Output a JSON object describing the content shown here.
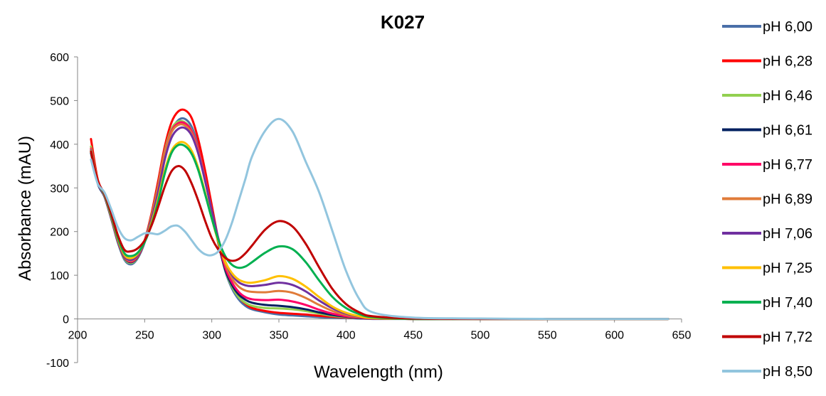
{
  "chart_data": {
    "type": "line",
    "title": "K027",
    "xlabel": "Wavelength (nm)",
    "ylabel": "Absorbance (mAU)",
    "xlim": [
      200,
      650
    ],
    "ylim": [
      -100,
      600
    ],
    "xticks": [
      200,
      250,
      300,
      350,
      400,
      450,
      500,
      550,
      600,
      650
    ],
    "yticks": [
      -100,
      0,
      100,
      200,
      300,
      400,
      500,
      600
    ],
    "xtick_labels": [
      "200",
      "250",
      "300",
      "350",
      "400",
      "450",
      "500",
      "550",
      "600",
      "650"
    ],
    "ytick_labels": [
      "-100",
      "0",
      "100",
      "200",
      "300",
      "400",
      "500",
      "600"
    ],
    "grid": false,
    "legend_position": "right",
    "series": [
      {
        "name": "pH 6,00",
        "color": "#4a6fa8",
        "x": [
          210,
          215,
          220,
          225,
          230,
          235,
          240,
          245,
          250,
          255,
          260,
          265,
          270,
          275,
          280,
          285,
          290,
          295,
          300,
          305,
          310,
          315,
          320,
          325,
          330,
          340,
          350,
          360,
          370,
          380,
          390,
          400,
          410,
          420,
          450,
          500,
          550,
          600,
          640
        ],
        "y": [
          385,
          310,
          280,
          230,
          175,
          135,
          125,
          140,
          175,
          230,
          300,
          380,
          430,
          455,
          458,
          440,
          395,
          330,
          250,
          175,
          110,
          70,
          45,
          30,
          22,
          15,
          10,
          8,
          6,
          4,
          3,
          2,
          1,
          0,
          0,
          0,
          0,
          0,
          0
        ]
      },
      {
        "name": "pH 6,28",
        "color": "#ff0000",
        "x": [
          210,
          215,
          220,
          225,
          230,
          235,
          240,
          245,
          250,
          255,
          260,
          265,
          270,
          275,
          280,
          285,
          290,
          295,
          300,
          305,
          310,
          315,
          320,
          325,
          330,
          340,
          350,
          360,
          370,
          380,
          390,
          400,
          410,
          420,
          450,
          500,
          550,
          600,
          640
        ],
        "y": [
          412,
          320,
          285,
          235,
          180,
          140,
          130,
          145,
          180,
          240,
          315,
          395,
          450,
          475,
          478,
          460,
          410,
          340,
          260,
          180,
          115,
          75,
          50,
          35,
          25,
          18,
          14,
          12,
          10,
          7,
          5,
          3,
          2,
          1,
          0,
          0,
          0,
          0,
          0
        ]
      },
      {
        "name": "pH 6,46",
        "color": "#92d050",
        "x": [
          210,
          215,
          220,
          225,
          230,
          235,
          240,
          245,
          250,
          255,
          260,
          265,
          270,
          275,
          280,
          285,
          290,
          295,
          300,
          305,
          310,
          315,
          320,
          325,
          330,
          340,
          350,
          360,
          370,
          380,
          390,
          400,
          410,
          420,
          450,
          500,
          550,
          600,
          640
        ],
        "y": [
          395,
          315,
          282,
          233,
          178,
          138,
          128,
          142,
          178,
          235,
          305,
          385,
          435,
          452,
          450,
          432,
          388,
          322,
          245,
          172,
          112,
          74,
          50,
          37,
          30,
          25,
          24,
          22,
          18,
          12,
          7,
          4,
          2,
          1,
          0,
          0,
          0,
          0,
          0
        ]
      },
      {
        "name": "pH 6,61",
        "color": "#002060",
        "x": [
          210,
          215,
          220,
          225,
          230,
          235,
          240,
          245,
          250,
          255,
          260,
          265,
          270,
          275,
          280,
          285,
          290,
          295,
          300,
          305,
          310,
          315,
          320,
          325,
          330,
          340,
          350,
          360,
          370,
          380,
          390,
          400,
          410,
          420,
          450,
          500,
          550,
          600,
          640
        ],
        "y": [
          380,
          312,
          281,
          232,
          178,
          140,
          130,
          143,
          178,
          232,
          300,
          378,
          428,
          446,
          446,
          428,
          385,
          320,
          245,
          172,
          113,
          78,
          56,
          44,
          37,
          32,
          30,
          27,
          22,
          15,
          9,
          5,
          2,
          1,
          0,
          0,
          0,
          0,
          0
        ]
      },
      {
        "name": "pH 6,77",
        "color": "#ff0066",
        "x": [
          210,
          215,
          220,
          225,
          230,
          235,
          240,
          245,
          250,
          255,
          260,
          265,
          270,
          275,
          280,
          285,
          290,
          295,
          300,
          305,
          310,
          315,
          320,
          325,
          330,
          340,
          350,
          360,
          370,
          380,
          390,
          400,
          410,
          420,
          450,
          500,
          550,
          600,
          640
        ],
        "y": [
          390,
          314,
          282,
          233,
          179,
          141,
          131,
          144,
          178,
          233,
          302,
          380,
          430,
          448,
          448,
          430,
          387,
          322,
          248,
          176,
          118,
          84,
          62,
          50,
          45,
          43,
          44,
          40,
          32,
          21,
          12,
          6,
          3,
          1,
          0,
          0,
          0,
          0,
          0
        ]
      },
      {
        "name": "pH 6,89",
        "color": "#e07b39",
        "x": [
          210,
          215,
          220,
          225,
          230,
          235,
          240,
          245,
          250,
          255,
          260,
          265,
          270,
          275,
          280,
          285,
          290,
          295,
          300,
          305,
          310,
          315,
          320,
          325,
          330,
          340,
          350,
          360,
          370,
          380,
          390,
          400,
          410,
          420,
          450,
          500,
          550,
          600,
          640
        ],
        "y": [
          388,
          314,
          283,
          234,
          180,
          142,
          133,
          146,
          179,
          233,
          300,
          378,
          427,
          444,
          443,
          425,
          382,
          318,
          248,
          180,
          126,
          93,
          74,
          65,
          62,
          61,
          64,
          60,
          48,
          32,
          18,
          9,
          4,
          2,
          0,
          0,
          0,
          0,
          0
        ]
      },
      {
        "name": "pH 7,06",
        "color": "#7030a0",
        "x": [
          210,
          215,
          220,
          225,
          230,
          235,
          240,
          245,
          250,
          255,
          260,
          265,
          270,
          275,
          280,
          285,
          290,
          295,
          300,
          305,
          310,
          315,
          320,
          325,
          330,
          340,
          350,
          360,
          370,
          380,
          390,
          400,
          410,
          420,
          450,
          500,
          550,
          600,
          640
        ],
        "y": [
          386,
          314,
          283,
          235,
          181,
          143,
          135,
          147,
          178,
          228,
          290,
          365,
          415,
          435,
          437,
          420,
          378,
          316,
          248,
          183,
          132,
          101,
          84,
          77,
          75,
          78,
          83,
          78,
          63,
          42,
          24,
          12,
          5,
          2,
          0,
          0,
          0,
          0,
          0
        ]
      },
      {
        "name": "pH 7,25",
        "color": "#ffc000",
        "x": [
          210,
          215,
          220,
          225,
          230,
          235,
          240,
          245,
          250,
          255,
          260,
          265,
          270,
          275,
          280,
          285,
          290,
          295,
          300,
          305,
          310,
          315,
          320,
          325,
          330,
          340,
          350,
          360,
          370,
          380,
          390,
          400,
          410,
          420,
          450,
          500,
          550,
          600,
          640
        ],
        "y": [
          384,
          315,
          284,
          236,
          183,
          146,
          139,
          150,
          177,
          220,
          275,
          340,
          385,
          403,
          403,
          385,
          345,
          290,
          230,
          175,
          131,
          105,
          90,
          84,
          83,
          89,
          98,
          92,
          74,
          50,
          28,
          14,
          6,
          2,
          0,
          0,
          0,
          0,
          0
        ]
      },
      {
        "name": "pH 7,40",
        "color": "#00b050",
        "x": [
          210,
          215,
          220,
          225,
          230,
          235,
          240,
          245,
          250,
          255,
          260,
          265,
          270,
          275,
          280,
          285,
          290,
          295,
          300,
          305,
          310,
          315,
          320,
          325,
          330,
          340,
          350,
          360,
          370,
          380,
          390,
          400,
          410,
          420,
          450,
          500,
          550,
          600,
          640
        ],
        "y": [
          383,
          315,
          285,
          238,
          186,
          150,
          144,
          152,
          176,
          215,
          268,
          333,
          380,
          398,
          396,
          378,
          340,
          286,
          230,
          180,
          144,
          124,
          117,
          120,
          130,
          152,
          166,
          160,
          130,
          88,
          50,
          25,
          11,
          4,
          0,
          0,
          0,
          0,
          0
        ]
      },
      {
        "name": "pH 7,72",
        "color": "#c00000",
        "x": [
          210,
          215,
          220,
          225,
          230,
          235,
          240,
          245,
          250,
          255,
          260,
          265,
          270,
          275,
          280,
          285,
          290,
          295,
          300,
          305,
          310,
          315,
          320,
          325,
          330,
          340,
          350,
          360,
          370,
          380,
          390,
          400,
          410,
          420,
          450,
          500,
          550,
          600,
          640
        ],
        "y": [
          383,
          316,
          287,
          242,
          192,
          158,
          155,
          162,
          180,
          213,
          256,
          303,
          338,
          350,
          340,
          310,
          270,
          225,
          185,
          158,
          140,
          133,
          137,
          150,
          168,
          205,
          224,
          212,
          172,
          118,
          68,
          34,
          15,
          6,
          1,
          0,
          0,
          0,
          0
        ]
      },
      {
        "name": "pH 8,50",
        "color": "#92c5de",
        "x": [
          210,
          215,
          220,
          225,
          230,
          235,
          240,
          245,
          250,
          255,
          260,
          265,
          270,
          275,
          280,
          285,
          290,
          295,
          300,
          305,
          310,
          315,
          320,
          325,
          330,
          340,
          350,
          360,
          370,
          380,
          390,
          400,
          410,
          420,
          450,
          500,
          550,
          600,
          640
        ],
        "y": [
          365,
          310,
          290,
          252,
          210,
          185,
          180,
          188,
          196,
          196,
          194,
          202,
          212,
          213,
          200,
          180,
          160,
          148,
          146,
          155,
          180,
          220,
          270,
          320,
          372,
          432,
          458,
          430,
          360,
          290,
          200,
          110,
          45,
          15,
          3,
          1,
          0,
          0,
          0
        ]
      }
    ]
  }
}
